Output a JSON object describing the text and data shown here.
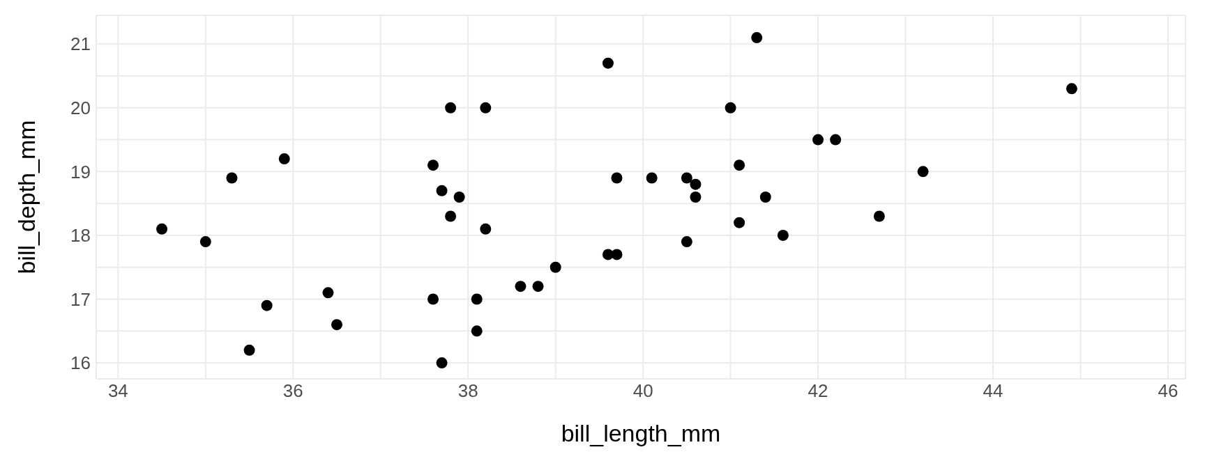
{
  "chart_data": {
    "type": "scatter",
    "xlabel": "bill_length_mm",
    "ylabel": "bill_depth_mm",
    "x": [
      34.5,
      35.0,
      35.3,
      35.5,
      35.7,
      35.9,
      36.4,
      36.5,
      37.6,
      37.6,
      37.7,
      37.7,
      37.8,
      37.8,
      37.9,
      38.1,
      38.1,
      38.2,
      38.2,
      38.6,
      38.8,
      39.0,
      39.6,
      39.6,
      39.7,
      39.7,
      40.1,
      40.5,
      40.5,
      40.6,
      40.6,
      41.0,
      41.1,
      41.1,
      41.3,
      41.4,
      41.6,
      42.0,
      42.2,
      42.7,
      43.2,
      44.9
    ],
    "values": [
      18.1,
      17.9,
      18.9,
      16.2,
      16.9,
      19.2,
      17.1,
      16.6,
      19.1,
      17.0,
      18.7,
      16.0,
      20.0,
      18.3,
      18.6,
      17.0,
      16.5,
      20.0,
      18.1,
      17.2,
      17.2,
      17.5,
      20.7,
      17.7,
      17.7,
      18.9,
      18.9,
      18.9,
      17.9,
      18.8,
      18.6,
      20.0,
      19.1,
      18.2,
      21.1,
      18.6,
      18.0,
      19.5,
      19.5,
      18.3,
      19.0,
      20.3
    ],
    "color": "#000000",
    "marker": "circle",
    "xlim": [
      33.75,
      46.2
    ],
    "ylim": [
      15.75,
      21.45
    ],
    "xticks": [
      34,
      {
        "value": 35,
        "label": null
      },
      36,
      {
        "value": 37,
        "label": null
      },
      38,
      {
        "value": 39,
        "label": null
      },
      40,
      {
        "value": 41,
        "label": null
      },
      42,
      {
        "value": 43,
        "label": null
      },
      44,
      {
        "value": 45,
        "label": null
      },
      46
    ],
    "yticks": [
      16,
      {
        "value": 16.5,
        "label": null
      },
      17,
      {
        "value": 17.5,
        "label": null
      },
      18,
      {
        "value": 18.5,
        "label": null
      },
      19,
      {
        "value": 19.5,
        "label": null
      },
      20,
      {
        "value": 20.5,
        "label": null
      },
      21
    ],
    "grid": true
  }
}
